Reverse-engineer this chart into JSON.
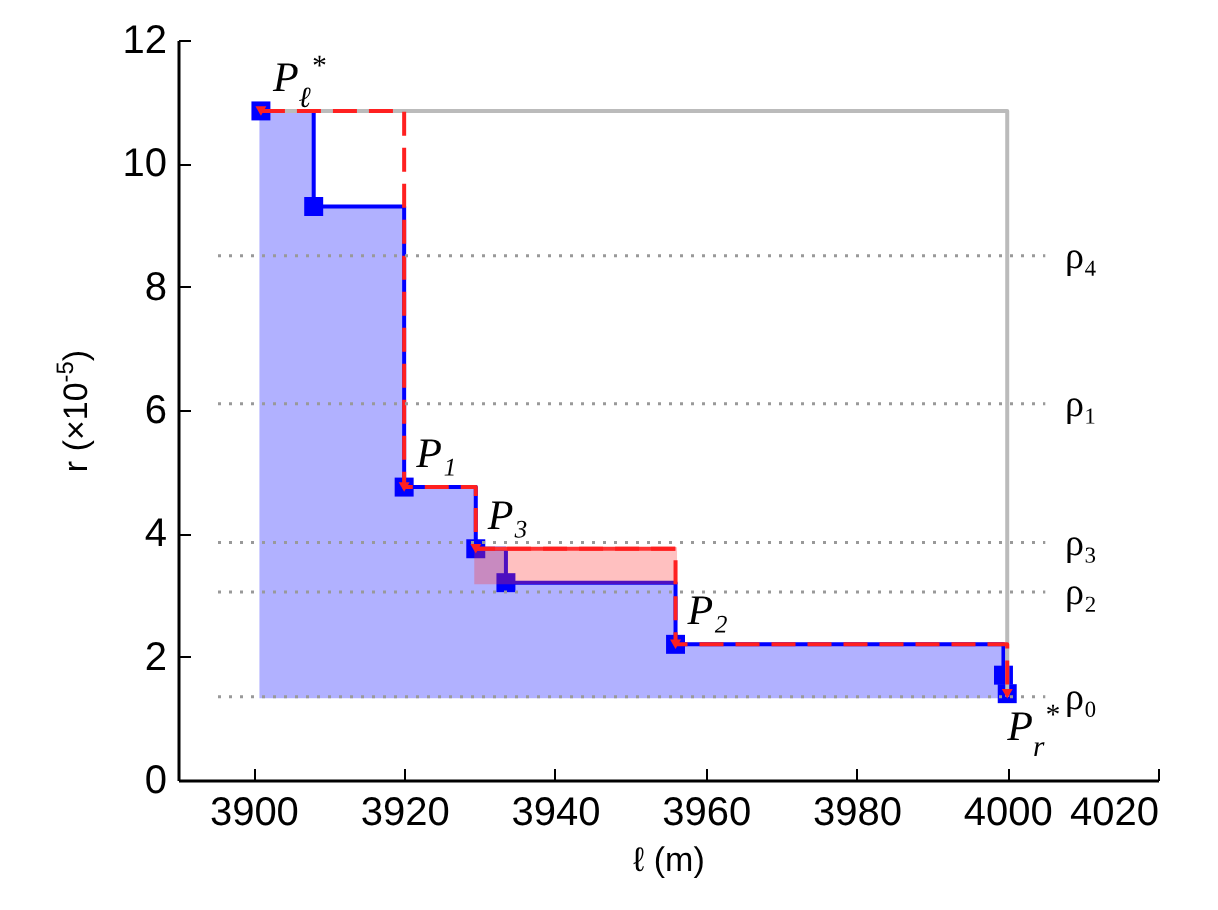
{
  "chart_data": {
    "type": "step",
    "xlabel": "ℓ (m)",
    "ylabel": "r (×10$^{-5}$)",
    "xlim": [
      3890,
      4020
    ],
    "xticks": [
      3900,
      3920,
      3940,
      3960,
      3980,
      4000,
      4020
    ],
    "ylim": [
      0,
      12
    ],
    "yticks": [
      0,
      2,
      4,
      6,
      8,
      10,
      12
    ],
    "grid": false,
    "series": [
      {
        "color": "#0000ff",
        "marker": "square",
        "x": [
          3901,
          3908,
          3920,
          3929.5,
          3933.5,
          3956,
          3999.5,
          4000
        ],
        "values": [
          10.85,
          9.3,
          4.75,
          3.75,
          3.2,
          2.2,
          1.7,
          1.4
        ],
        "lower": [
          1.35,
          1.35,
          1.35,
          1.35,
          1.35,
          1.35,
          1.35,
          1.35
        ],
        "upper": [
          10.85,
          9.3,
          4.75,
          3.75,
          3.2,
          2.2,
          1.7,
          1.4
        ]
      },
      {
        "type": "line",
        "color": "#bbbbbb",
        "marker": "none",
        "x": [
          3901,
          4000,
          4000
        ],
        "values": [
          10.85,
          10.85,
          1.35
        ]
      },
      {
        "type": "line",
        "color": "#ff3333",
        "marker": "none",
        "x": [
          3929.5,
          3956
        ],
        "values": [
          3.75,
          3.75
        ],
        "lower": [
          3.2,
          3.2
        ],
        "upper": [
          3.75,
          3.75
        ]
      },
      {
        "color": "#ff2020",
        "marker": "triangle",
        "line_style": "dashed",
        "x": [
          3901,
          3920,
          3929.5,
          3956,
          4000
        ],
        "values": [
          10.85,
          4.75,
          3.75,
          2.2,
          1.4
        ]
      }
    ],
    "ref_lines": [
      {
        "axis": "y",
        "value": 8.5,
        "label": "ρ₄",
        "line_style": "dotted",
        "color": "#999999"
      },
      {
        "axis": "y",
        "value": 6.1,
        "label": "ρ₁",
        "line_style": "dotted",
        "color": "#999999"
      },
      {
        "axis": "y",
        "value": 3.85,
        "label": "ρ₃",
        "line_style": "dotted",
        "color": "#999999"
      },
      {
        "axis": "y",
        "value": 3.05,
        "label": "ρ₂",
        "line_style": "dotted",
        "color": "#999999"
      },
      {
        "axis": "y",
        "value": 1.35,
        "label": "ρ₀",
        "line_style": "dotted",
        "color": "#999999"
      }
    ],
    "annotations": [
      {
        "text": "P$_{ℓ}$$^{*}$",
        "x": 3901,
        "y": 10.85
      },
      {
        "text": "P₁",
        "x": 3920,
        "y": 4.75
      },
      {
        "text": "P₃",
        "x": 3929.5,
        "y": 3.75
      },
      {
        "text": "P₂",
        "x": 3956,
        "y": 2.2
      },
      {
        "text": "P$_{r}$$^{*}$",
        "x": 4000,
        "y": 1.4
      }
    ]
  }
}
